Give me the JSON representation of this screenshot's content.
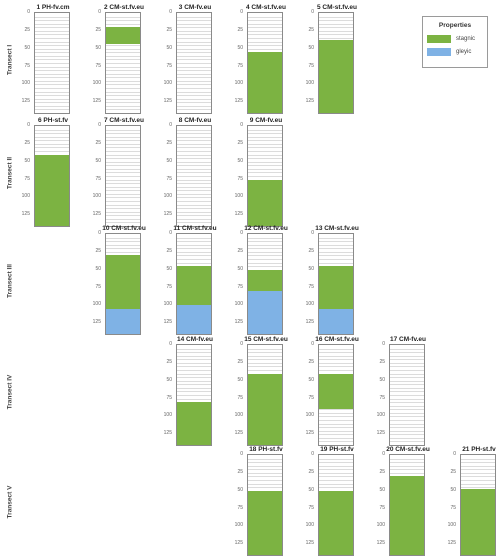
{
  "legend": {
    "title": "Properties",
    "items": [
      {
        "label": "stagnic",
        "color": "#7cb342"
      },
      {
        "label": "gleyic",
        "color": "#7fb2e5"
      }
    ]
  },
  "axis_ticks": [
    "0",
    "25",
    "50",
    "75",
    "100",
    "125"
  ],
  "depth_max": 140,
  "transects": [
    {
      "label": "Transect I",
      "profiles": [
        {
          "id": "1 PH-fv.cm",
          "slot": 0,
          "stagnic": null,
          "gleyic": null
        },
        {
          "id": "2 CM-st.fv.eu",
          "slot": 1,
          "stagnic": [
            20,
            43
          ],
          "gleyic": null
        },
        {
          "id": "3 CM-fv.eu",
          "slot": 2,
          "stagnic": null,
          "gleyic": null
        },
        {
          "id": "4 CM-st.fv.eu",
          "slot": 3,
          "stagnic": [
            55,
            140
          ],
          "gleyic": null
        },
        {
          "id": "5 CM-st.fv.eu",
          "slot": 4,
          "stagnic": [
            38,
            140
          ],
          "gleyic": null
        }
      ]
    },
    {
      "label": "Transect II",
      "profiles": [
        {
          "id": "6 PH-st.fv",
          "slot": 0,
          "stagnic": [
            40,
            140
          ],
          "gleyic": null
        },
        {
          "id": "7 CM-st.fv.eu",
          "slot": 1,
          "stagnic": null,
          "gleyic": null
        },
        {
          "id": "8 CM-fv.eu",
          "slot": 2,
          "stagnic": null,
          "gleyic": null
        },
        {
          "id": "9 CM-fv.eu",
          "slot": 3,
          "stagnic": [
            75,
            140
          ],
          "gleyic": null
        }
      ]
    },
    {
      "label": "Transect III",
      "profiles": [
        {
          "id": "10 CM-st.fv.eu",
          "slot": 1,
          "stagnic": [
            30,
            105
          ],
          "gleyic": [
            105,
            140
          ]
        },
        {
          "id": "11 CM-st.fv.eu",
          "slot": 2,
          "stagnic": [
            45,
            100
          ],
          "gleyic": [
            100,
            140
          ]
        },
        {
          "id": "12 CM-st.fv.eu",
          "slot": 3,
          "stagnic": [
            50,
            80
          ],
          "gleyic": [
            80,
            140
          ]
        },
        {
          "id": "13 CM-st.fv.eu",
          "slot": 4,
          "stagnic": [
            45,
            105
          ],
          "gleyic": [
            105,
            140
          ]
        }
      ]
    },
    {
      "label": "Transect IV",
      "profiles": [
        {
          "id": "14 CM-fv.eu",
          "slot": 2,
          "stagnic": [
            80,
            140
          ],
          "gleyic": null
        },
        {
          "id": "15 CM-st.fv.eu",
          "slot": 3,
          "stagnic": [
            40,
            140
          ],
          "gleyic": null
        },
        {
          "id": "16 CM-st.fv.eu",
          "slot": 4,
          "stagnic": [
            40,
            90
          ],
          "gleyic": null
        },
        {
          "id": "17 CM-fv.eu",
          "slot": 5,
          "stagnic": null,
          "gleyic": null
        }
      ]
    },
    {
      "label": "Transect V",
      "profiles": [
        {
          "id": "18 PH-st.fv",
          "slot": 3,
          "stagnic": [
            50,
            140
          ],
          "gleyic": null
        },
        {
          "id": "19 PH-st.fv",
          "slot": 4,
          "stagnic": [
            50,
            140
          ],
          "gleyic": null
        },
        {
          "id": "20 CM-st.fv.eu",
          "slot": 5,
          "stagnic": [
            30,
            140
          ],
          "gleyic": null
        },
        {
          "id": "21 PH-st.fv",
          "slot": 6,
          "stagnic": [
            48,
            140
          ],
          "gleyic": null
        }
      ]
    }
  ]
}
